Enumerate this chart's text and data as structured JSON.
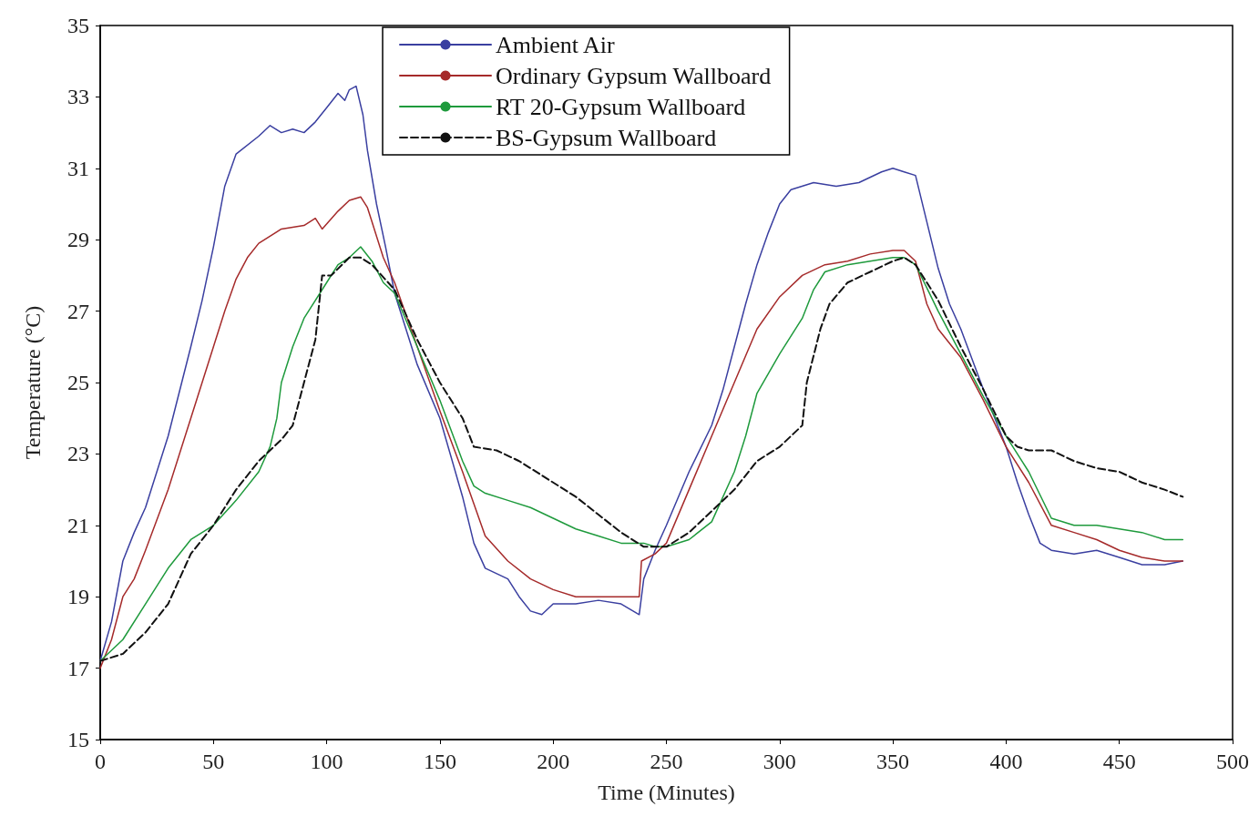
{
  "chart_data": {
    "type": "line",
    "xlabel": "Time (Minutes)",
    "ylabel": "Temperature (°C)",
    "xlim": [
      0,
      500
    ],
    "xticks": [
      0,
      50,
      100,
      150,
      200,
      250,
      300,
      350,
      400,
      450,
      500
    ],
    "ylim": [
      15,
      35
    ],
    "yticks": [
      15,
      17,
      19,
      21,
      23,
      25,
      27,
      29,
      31,
      33,
      35
    ],
    "grid": false,
    "legend": "top",
    "series": [
      {
        "name": "Ambient Air",
        "color": "#3a3fa0",
        "line_style": "solid",
        "x": [
          0,
          5,
          10,
          15,
          20,
          30,
          40,
          45,
          50,
          55,
          60,
          70,
          75,
          80,
          85,
          90,
          95,
          100,
          105,
          108,
          110,
          113,
          116,
          118,
          122,
          126,
          130,
          135,
          140,
          150,
          160,
          165,
          170,
          180,
          185,
          190,
          195,
          200,
          210,
          220,
          230,
          238,
          240,
          245,
          250,
          260,
          270,
          275,
          280,
          285,
          290,
          295,
          300,
          305,
          315,
          325,
          335,
          345,
          350,
          355,
          360,
          365,
          370,
          375,
          380,
          390,
          400,
          405,
          410,
          415,
          420,
          430,
          440,
          450,
          460,
          470,
          478
        ],
        "values": [
          17.2,
          18.3,
          20.0,
          20.8,
          21.5,
          23.5,
          26.0,
          27.3,
          28.8,
          30.5,
          31.4,
          31.9,
          32.2,
          32.0,
          32.1,
          32.0,
          32.3,
          32.7,
          33.1,
          32.9,
          33.2,
          33.3,
          32.5,
          31.5,
          30.0,
          28.8,
          27.5,
          26.5,
          25.5,
          24.0,
          21.8,
          20.5,
          19.8,
          19.5,
          19.0,
          18.6,
          18.5,
          18.8,
          18.8,
          18.9,
          18.8,
          18.5,
          19.5,
          20.3,
          21.0,
          22.5,
          23.8,
          24.8,
          26.0,
          27.2,
          28.3,
          29.2,
          30.0,
          30.4,
          30.6,
          30.5,
          30.6,
          30.9,
          31.0,
          30.9,
          30.8,
          29.5,
          28.2,
          27.2,
          26.5,
          24.8,
          23.2,
          22.2,
          21.3,
          20.5,
          20.3,
          20.2,
          20.3,
          20.1,
          19.9,
          19.9,
          20.0
        ]
      },
      {
        "name": "Ordinary Gypsum Wallboard",
        "color": "#a52a2a",
        "line_style": "solid",
        "x": [
          0,
          5,
          10,
          15,
          20,
          30,
          40,
          50,
          55,
          60,
          65,
          70,
          80,
          90,
          95,
          98,
          105,
          110,
          115,
          118,
          120,
          125,
          130,
          140,
          150,
          160,
          165,
          170,
          180,
          190,
          200,
          210,
          220,
          238,
          239,
          245,
          250,
          260,
          270,
          280,
          290,
          300,
          310,
          320,
          330,
          340,
          350,
          355,
          360,
          365,
          370,
          380,
          390,
          400,
          410,
          420,
          430,
          440,
          450,
          460,
          470,
          478
        ],
        "values": [
          17.0,
          17.8,
          19.0,
          19.5,
          20.3,
          22.0,
          24.0,
          26.0,
          27.0,
          27.9,
          28.5,
          28.9,
          29.3,
          29.4,
          29.6,
          29.3,
          29.8,
          30.1,
          30.2,
          29.9,
          29.5,
          28.5,
          27.8,
          26.0,
          24.2,
          22.5,
          21.6,
          20.7,
          20.0,
          19.5,
          19.2,
          19.0,
          19.0,
          19.0,
          20.0,
          20.2,
          20.5,
          22.0,
          23.5,
          25.0,
          26.5,
          27.4,
          28.0,
          28.3,
          28.4,
          28.6,
          28.7,
          28.7,
          28.4,
          27.2,
          26.5,
          25.7,
          24.5,
          23.2,
          22.2,
          21.0,
          20.8,
          20.6,
          20.3,
          20.1,
          20.0,
          20.0
        ]
      },
      {
        "name": "RT 20-Gypsum Wallboard",
        "color": "#1e9a3c",
        "line_style": "solid",
        "x": [
          0,
          10,
          20,
          30,
          40,
          50,
          60,
          70,
          75,
          78,
          80,
          85,
          90,
          100,
          105,
          110,
          115,
          120,
          125,
          130,
          140,
          150,
          160,
          165,
          170,
          180,
          190,
          200,
          210,
          220,
          230,
          240,
          245,
          250,
          260,
          270,
          280,
          285,
          290,
          300,
          310,
          315,
          320,
          330,
          340,
          350,
          355,
          360,
          370,
          380,
          390,
          400,
          410,
          420,
          430,
          440,
          450,
          460,
          470,
          478
        ],
        "values": [
          17.2,
          17.8,
          18.8,
          19.8,
          20.6,
          21.0,
          21.7,
          22.5,
          23.2,
          24.0,
          25.0,
          26.0,
          26.8,
          27.8,
          28.3,
          28.5,
          28.8,
          28.4,
          27.8,
          27.5,
          26.0,
          24.5,
          22.8,
          22.1,
          21.9,
          21.7,
          21.5,
          21.2,
          20.9,
          20.7,
          20.5,
          20.5,
          20.4,
          20.4,
          20.6,
          21.1,
          22.5,
          23.5,
          24.7,
          25.8,
          26.8,
          27.6,
          28.1,
          28.3,
          28.4,
          28.5,
          28.5,
          28.3,
          27.0,
          25.8,
          24.6,
          23.5,
          22.5,
          21.2,
          21.0,
          21.0,
          20.9,
          20.8,
          20.6,
          20.6
        ]
      },
      {
        "name": "BS-Gypsum Wallboard",
        "color": "#111111",
        "line_style": "dashed",
        "x": [
          0,
          10,
          20,
          30,
          40,
          50,
          60,
          70,
          80,
          85,
          90,
          95,
          98,
          102,
          110,
          115,
          120,
          130,
          140,
          150,
          160,
          165,
          175,
          185,
          200,
          210,
          220,
          230,
          240,
          250,
          260,
          270,
          280,
          290,
          300,
          310,
          312,
          318,
          322,
          330,
          340,
          350,
          355,
          360,
          370,
          380,
          390,
          400,
          405,
          410,
          420,
          430,
          440,
          450,
          460,
          470,
          478
        ],
        "values": [
          17.2,
          17.4,
          18.0,
          18.8,
          20.2,
          21.0,
          22.0,
          22.8,
          23.4,
          23.8,
          25.0,
          26.2,
          28.0,
          28.0,
          28.5,
          28.5,
          28.3,
          27.6,
          26.2,
          25.0,
          24.0,
          23.2,
          23.1,
          22.8,
          22.2,
          21.8,
          21.3,
          20.8,
          20.4,
          20.4,
          20.8,
          21.4,
          22.0,
          22.8,
          23.2,
          23.8,
          25.0,
          26.5,
          27.2,
          27.8,
          28.1,
          28.4,
          28.5,
          28.3,
          27.3,
          26.0,
          24.8,
          23.5,
          23.2,
          23.1,
          23.1,
          22.8,
          22.6,
          22.5,
          22.2,
          22.0,
          21.8
        ]
      }
    ]
  }
}
